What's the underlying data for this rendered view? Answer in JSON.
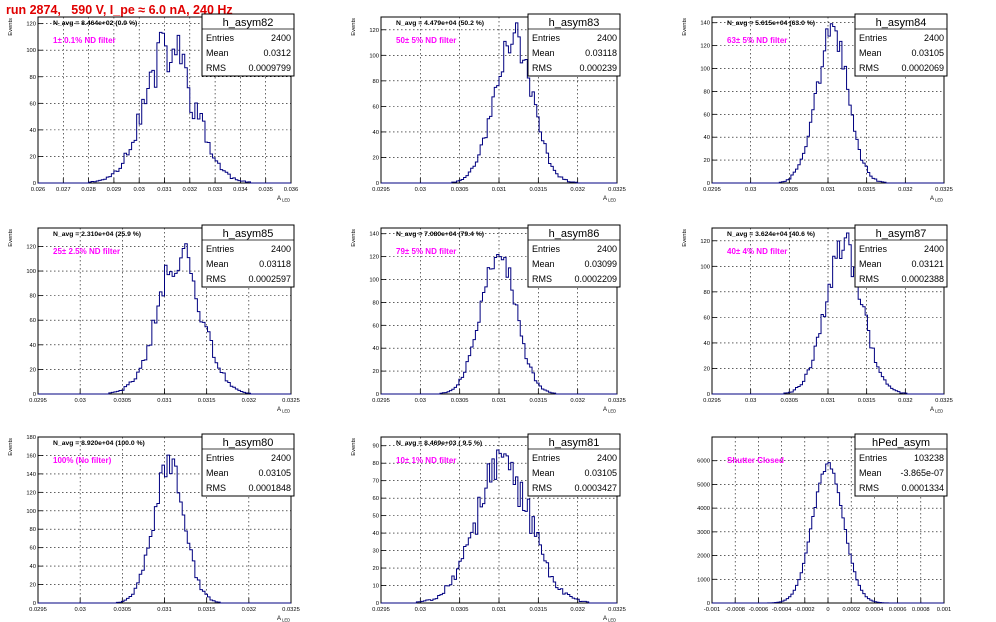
{
  "page": {
    "title": "run 2874,   590 V, I_pe ≈ 6.0 nA, 240 Hz"
  },
  "stat_labels": {
    "entries": "Entries",
    "mean": "Mean",
    "rms": "RMS"
  },
  "colors": {
    "hist": "#000080",
    "annotation": "#ff00ff",
    "title": "#e00000"
  },
  "chart_data": [
    {
      "type": "histogram",
      "name": "h_asym82",
      "navg": "N_avg = 8.464e+02 (0.9 %)",
      "annotation": "1± 0.1% ND filter",
      "stats": {
        "entries": "2400",
        "mean": "0.0312",
        "rms": "0.0009799"
      },
      "xlabel": "A",
      "xlabel_sub": "LED",
      "ylabel": "Events",
      "xlim": [
        0.026,
        0.036
      ],
      "ylim": [
        0,
        125
      ],
      "xticks": [
        0.026,
        0.027,
        0.028,
        0.029,
        0.03,
        0.031,
        0.032,
        0.033,
        0.034,
        0.035,
        0.036
      ],
      "xtick_labels": [
        "0.026",
        "0.027",
        "0.028",
        "0.029",
        "0.03",
        "0.031",
        "0.032",
        "0.033",
        "0.034",
        "0.035",
        "0.036"
      ],
      "yticks": [
        0,
        20,
        40,
        60,
        80,
        100,
        120
      ],
      "ytick_labels": [
        "0",
        "20",
        "40",
        "60",
        "80",
        "100",
        "120"
      ],
      "mean": 0.0312,
      "sigma": 0.00098,
      "peak": 100,
      "nbins": 100,
      "seed": 11,
      "noise": 0.22
    },
    {
      "type": "histogram",
      "name": "h_asym83",
      "navg": "N_avg = 4.479e+04 (50.2 %)",
      "annotation": "50± 5% ND filter",
      "stats": {
        "entries": "2400",
        "mean": "0.03118",
        "rms": "0.000239"
      },
      "xlabel": "A",
      "xlabel_sub": "LED",
      "ylabel": "Events",
      "xlim": [
        0.0295,
        0.0325
      ],
      "ylim": [
        0,
        130
      ],
      "xticks": [
        0.0295,
        0.03,
        0.0305,
        0.031,
        0.0315,
        0.032,
        0.0325
      ],
      "xtick_labels": [
        "0.0295",
        "0.03",
        "0.0305",
        "0.031",
        "0.0315",
        "0.032",
        "0.0325"
      ],
      "yticks": [
        0,
        20,
        40,
        60,
        80,
        100,
        120
      ],
      "ytick_labels": [
        "0",
        "20",
        "40",
        "60",
        "80",
        "100",
        "120"
      ],
      "mean": 0.03118,
      "sigma": 0.000239,
      "peak": 115,
      "nbins": 100,
      "seed": 23,
      "noise": 0.12
    },
    {
      "type": "histogram",
      "name": "h_asym84",
      "navg": "N_avg = 5.615e+04 (63.0 %)",
      "annotation": "63± 5% ND filter",
      "stats": {
        "entries": "2400",
        "mean": "0.03105",
        "rms": "0.0002069"
      },
      "xlabel": "A",
      "xlabel_sub": "LED",
      "ylabel": "Events",
      "xlim": [
        0.0295,
        0.0325
      ],
      "ylim": [
        0,
        145
      ],
      "xticks": [
        0.0295,
        0.03,
        0.0305,
        0.031,
        0.0315,
        0.032,
        0.0325
      ],
      "xtick_labels": [
        "0.0295",
        "0.03",
        "0.0305",
        "0.031",
        "0.0315",
        "0.032",
        "0.0325"
      ],
      "yticks": [
        0,
        20,
        40,
        60,
        80,
        100,
        120,
        140
      ],
      "ytick_labels": [
        "0",
        "20",
        "40",
        "60",
        "80",
        "100",
        "120",
        "140"
      ],
      "mean": 0.03105,
      "sigma": 0.000207,
      "peak": 130,
      "nbins": 100,
      "seed": 37,
      "noise": 0.1
    },
    {
      "type": "histogram",
      "name": "h_asym85",
      "navg": "N_avg = 2.310e+04 (25.9 %)",
      "annotation": "25± 2.5% ND filter",
      "stats": {
        "entries": "2400",
        "mean": "0.03118",
        "rms": "0.0002597"
      },
      "xlabel": "A",
      "xlabel_sub": "LED",
      "ylabel": "Events",
      "xlim": [
        0.0295,
        0.0325
      ],
      "ylim": [
        0,
        135
      ],
      "xticks": [
        0.0295,
        0.03,
        0.0305,
        0.031,
        0.0315,
        0.032,
        0.0325
      ],
      "xtick_labels": [
        "0.0295",
        "0.03",
        "0.0305",
        "0.031",
        "0.0315",
        "0.032",
        "0.0325"
      ],
      "yticks": [
        0,
        20,
        40,
        60,
        80,
        100,
        120
      ],
      "ytick_labels": [
        "0",
        "20",
        "40",
        "60",
        "80",
        "100",
        "120"
      ],
      "mean": 0.03118,
      "sigma": 0.00026,
      "peak": 112,
      "nbins": 100,
      "seed": 41,
      "noise": 0.14
    },
    {
      "type": "histogram",
      "name": "h_asym86",
      "navg": "N_avg = 7.080e+04 (79.4 %)",
      "annotation": "79± 5% ND filter",
      "stats": {
        "entries": "2400",
        "mean": "0.03099",
        "rms": "0.0002209"
      },
      "xlabel": "A",
      "xlabel_sub": "LED",
      "ylabel": "Events",
      "xlim": [
        0.0295,
        0.0325
      ],
      "ylim": [
        0,
        145
      ],
      "xticks": [
        0.0295,
        0.03,
        0.0305,
        0.031,
        0.0315,
        0.032,
        0.0325
      ],
      "xtick_labels": [
        "0.0295",
        "0.03",
        "0.0305",
        "0.031",
        "0.0315",
        "0.032",
        "0.0325"
      ],
      "yticks": [
        0,
        20,
        40,
        60,
        80,
        100,
        120,
        140
      ],
      "ytick_labels": [
        "0",
        "20",
        "40",
        "60",
        "80",
        "100",
        "120",
        "140"
      ],
      "mean": 0.03099,
      "sigma": 0.000221,
      "peak": 125,
      "nbins": 100,
      "seed": 53,
      "noise": 0.11
    },
    {
      "type": "histogram",
      "name": "h_asym87",
      "navg": "N_avg = 3.624e+04 (40.6 %)",
      "annotation": "40± 4% ND filter",
      "stats": {
        "entries": "2400",
        "mean": "0.03121",
        "rms": "0.0002388"
      },
      "xlabel": "A",
      "xlabel_sub": "LED",
      "ylabel": "Events",
      "xlim": [
        0.0295,
        0.0325
      ],
      "ylim": [
        0,
        130
      ],
      "xticks": [
        0.0295,
        0.03,
        0.0305,
        0.031,
        0.0315,
        0.032,
        0.0325
      ],
      "xtick_labels": [
        "0.0295",
        "0.03",
        "0.0305",
        "0.031",
        "0.0315",
        "0.032",
        "0.0325"
      ],
      "yticks": [
        0,
        20,
        40,
        60,
        80,
        100,
        120
      ],
      "ytick_labels": [
        "0",
        "20",
        "40",
        "60",
        "80",
        "100",
        "120"
      ],
      "mean": 0.03121,
      "sigma": 0.000239,
      "peak": 115,
      "nbins": 100,
      "seed": 67,
      "noise": 0.12
    },
    {
      "type": "histogram",
      "name": "h_asym80",
      "navg": "N_avg = 8.920e+04 (100.0 %)",
      "annotation": "100% (No filter)",
      "stats": {
        "entries": "2400",
        "mean": "0.03105",
        "rms": "0.0001848"
      },
      "xlabel": "A",
      "xlabel_sub": "LED",
      "ylabel": "Events",
      "xlim": [
        0.0295,
        0.0325
      ],
      "ylim": [
        0,
        180
      ],
      "xticks": [
        0.0295,
        0.03,
        0.0305,
        0.031,
        0.0315,
        0.032,
        0.0325
      ],
      "xtick_labels": [
        "0.0295",
        "0.03",
        "0.0305",
        "0.031",
        "0.0315",
        "0.032",
        "0.0325"
      ],
      "yticks": [
        0,
        20,
        40,
        60,
        80,
        100,
        120,
        140,
        160,
        180
      ],
      "ytick_labels": [
        "0",
        "20",
        "40",
        "60",
        "80",
        "100",
        "120",
        "140",
        "160",
        "180"
      ],
      "mean": 0.03105,
      "sigma": 0.000185,
      "peak": 150,
      "nbins": 100,
      "seed": 71,
      "noise": 0.12
    },
    {
      "type": "histogram",
      "name": "h_asym81",
      "navg": "N_avg = 8.469e+03 ( 9.5 %)",
      "annotation": "10± 1% ND filter",
      "stats": {
        "entries": "2400",
        "mean": "0.03105",
        "rms": "0.0003427"
      },
      "xlabel": "A",
      "xlabel_sub": "LED",
      "ylabel": "Events",
      "xlim": [
        0.0295,
        0.0325
      ],
      "ylim": [
        0,
        95
      ],
      "xticks": [
        0.0295,
        0.03,
        0.0305,
        0.031,
        0.0315,
        0.032,
        0.0325
      ],
      "xtick_labels": [
        "0.0295",
        "0.03",
        "0.0305",
        "0.031",
        "0.0315",
        "0.032",
        "0.0325"
      ],
      "yticks": [
        0,
        10,
        20,
        30,
        40,
        50,
        60,
        70,
        80,
        90
      ],
      "ytick_labels": [
        "0",
        "10",
        "20",
        "30",
        "40",
        "50",
        "60",
        "70",
        "80",
        "90"
      ],
      "mean": 0.03105,
      "sigma": 0.000343,
      "peak": 78,
      "nbins": 100,
      "seed": 83,
      "noise": 0.2
    },
    {
      "type": "histogram",
      "name": "hPed_asym",
      "navg": "",
      "annotation": "Shutter Closed",
      "stats": {
        "entries": "103238",
        "mean": "-3.865e-07",
        "rms": "0.0001334"
      },
      "xlabel": "",
      "xlabel_sub": "",
      "ylabel": "",
      "xlim": [
        -0.001,
        0.001
      ],
      "ylim": [
        0,
        7000
      ],
      "xticks": [
        -0.001,
        -0.0008,
        -0.0006,
        -0.0004,
        -0.0002,
        0,
        0.0002,
        0.0004,
        0.0006,
        0.0008,
        0.001
      ],
      "xtick_labels": [
        "-0.001",
        "-0.0008",
        "-0.0006",
        "-0.0004",
        "-0.0002",
        "0",
        "0.0002",
        "0.0004",
        "0.0006",
        "0.0008",
        "0.001"
      ],
      "yticks": [
        0,
        1000,
        2000,
        3000,
        4000,
        5000,
        6000
      ],
      "ytick_labels": [
        "0",
        "1000",
        "2000",
        "3000",
        "4000",
        "5000",
        "6000"
      ],
      "mean": 0.0,
      "sigma": 0.000133,
      "peak": 5800,
      "nbins": 100,
      "seed": 97,
      "noise": 0.02
    }
  ]
}
